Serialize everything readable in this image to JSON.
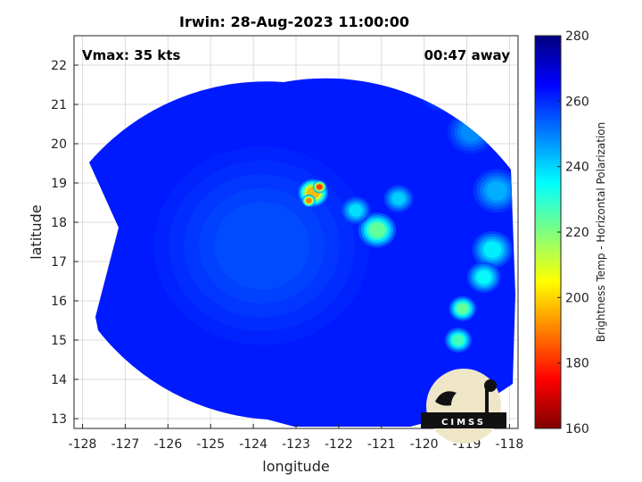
{
  "chart_data": {
    "type": "heatmap",
    "title": "Irwin: 28-Aug-2023 11:00:00",
    "xlabel": "longitude",
    "ylabel": "latitude",
    "xlim": [
      -128.2,
      -117.8
    ],
    "ylim": [
      12.75,
      22.75
    ],
    "x_ticks": [
      -128,
      -127,
      -126,
      -125,
      -124,
      -123,
      -122,
      -121,
      -120,
      -119,
      -118
    ],
    "y_ticks": [
      13,
      14,
      15,
      16,
      17,
      18,
      19,
      20,
      21,
      22
    ],
    "x_tick_labels": [
      "-128",
      "-127",
      "-126",
      "-125",
      "-124",
      "-123",
      "-122",
      "-121",
      "-120",
      "-119",
      "-118"
    ],
    "y_tick_labels": [
      "13",
      "14",
      "15",
      "16",
      "17",
      "18",
      "19",
      "20",
      "21",
      "22"
    ],
    "grid": true,
    "annotations": {
      "vmax": "Vmax: 35 kts",
      "time_away": "00:47 away"
    },
    "colorbar": {
      "label": "Brightness Temp - Horizontal Polarization",
      "range": [
        160,
        280
      ],
      "ticks": [
        160,
        180,
        200,
        220,
        240,
        260,
        280
      ],
      "tick_labels": [
        "160",
        "180",
        "200",
        "220",
        "240",
        "260",
        "280"
      ],
      "colormap": "jet"
    },
    "background_value": 262,
    "features": [
      {
        "name": "eye-region",
        "lon": -123.8,
        "lat": 17.4,
        "value": 256,
        "spread": 1.6
      },
      {
        "name": "convective-core",
        "lon": -122.6,
        "lat": 18.75,
        "value": 196,
        "spread": 0.22
      },
      {
        "name": "core-hot-1",
        "lon": -122.45,
        "lat": 18.9,
        "value": 180,
        "spread": 0.1
      },
      {
        "name": "core-hot-2",
        "lon": -122.7,
        "lat": 18.55,
        "value": 188,
        "spread": 0.1
      },
      {
        "name": "band-cell-1",
        "lon": -121.1,
        "lat": 17.8,
        "value": 222,
        "spread": 0.28
      },
      {
        "name": "band-cell-2",
        "lon": -121.6,
        "lat": 18.3,
        "value": 238,
        "spread": 0.22
      },
      {
        "name": "band-cell-3",
        "lon": -120.6,
        "lat": 18.6,
        "value": 240,
        "spread": 0.22
      },
      {
        "name": "outer-band-1",
        "lon": -119.1,
        "lat": 15.8,
        "value": 222,
        "spread": 0.2
      },
      {
        "name": "outer-band-2",
        "lon": -119.2,
        "lat": 15.0,
        "value": 226,
        "spread": 0.2
      },
      {
        "name": "outer-band-3",
        "lon": -118.4,
        "lat": 17.3,
        "value": 236,
        "spread": 0.3
      },
      {
        "name": "outer-band-4",
        "lon": -118.3,
        "lat": 18.8,
        "value": 244,
        "spread": 0.35
      },
      {
        "name": "outer-band-5",
        "lon": -118.9,
        "lat": 20.3,
        "value": 248,
        "spread": 0.35
      },
      {
        "name": "outer-band-6",
        "lon": -119.6,
        "lat": 21.3,
        "value": 250,
        "spread": 0.3
      },
      {
        "name": "outer-band-7",
        "lon": -118.6,
        "lat": 16.6,
        "value": 234,
        "spread": 0.25
      }
    ],
    "logo": "CIMSS"
  }
}
